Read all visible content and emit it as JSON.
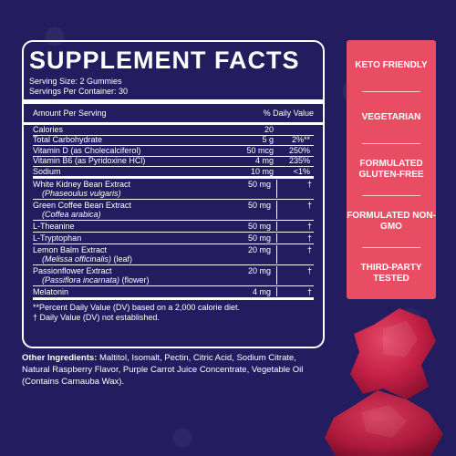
{
  "panel": {
    "title": "SUPPLEMENT FACTS",
    "serving_size": "Serving Size: 2 Gummies",
    "servings_per_container": "Servings Per Container: 30",
    "col_amount": "Amount Per Serving",
    "col_dv": "% Daily Value"
  },
  "nutrients": [
    {
      "name": "Calories",
      "amount": "20",
      "dv": ""
    },
    {
      "name": "Total Carbohydrate",
      "amount": "5 g",
      "dv": "2%**"
    },
    {
      "name": "Vitamin D (as Cholecalciferol)",
      "amount": "50 mcg",
      "dv": "250%"
    },
    {
      "name": "Vitamin B6 (as Pyridoxine HCl)",
      "amount": "4 mg",
      "dv": "235%"
    },
    {
      "name": "Sodium",
      "amount": "10 mg",
      "dv": "<1%"
    }
  ],
  "ingredients": [
    {
      "name": "White Kidney Bean Extract",
      "sub": "(Phaseoulus vulgaris)",
      "sub_extra": "",
      "amount": "50 mg",
      "dv": "†"
    },
    {
      "name": "Green Coffee Bean Extract",
      "sub": "(Coffea arabica)",
      "sub_extra": "",
      "amount": "50 mg",
      "dv": "†"
    },
    {
      "name": "L-Theanine",
      "sub": "",
      "sub_extra": "",
      "amount": "50 mg",
      "dv": "†"
    },
    {
      "name": "L-Tryptophan",
      "sub": "",
      "sub_extra": "",
      "amount": "50 mg",
      "dv": "†"
    },
    {
      "name": "Lemon Balm Extract",
      "sub": "(Melissa officinalis)",
      "sub_extra": " (leaf)",
      "amount": "20 mg",
      "dv": "†"
    },
    {
      "name": "Passionflower Extract",
      "sub": "(Passiflora incarnata)",
      "sub_extra": " (flower)",
      "amount": "20 mg",
      "dv": "†"
    },
    {
      "name": "Melatonin",
      "sub": "",
      "sub_extra": "",
      "amount": "4 mg",
      "dv": "†"
    }
  ],
  "footnotes": {
    "dv_note": "**Percent Daily Value (DV) based on a 2,000 calorie diet.",
    "dagger_note": "† Daily Value (DV) not established."
  },
  "other_ingredients": {
    "label": "Other Ingredients:",
    "text": " Maltitol, Isomalt, Pectin, Citric Acid, Sodium Citrate, Natural Raspberry Flavor, Purple Carrot Juice Concentrate, Vegetable Oil (Contains Carnauba Wax)."
  },
  "badges": [
    "KETO FRIENDLY",
    "VEGETARIAN",
    "FORMULATED GLUTEN-FREE",
    "FORMULATED NON-GMO",
    "THIRD-PARTY TESTED"
  ],
  "colors": {
    "background": "#231c5e",
    "badge": "#e94d63",
    "gummy": "#c8264a"
  }
}
